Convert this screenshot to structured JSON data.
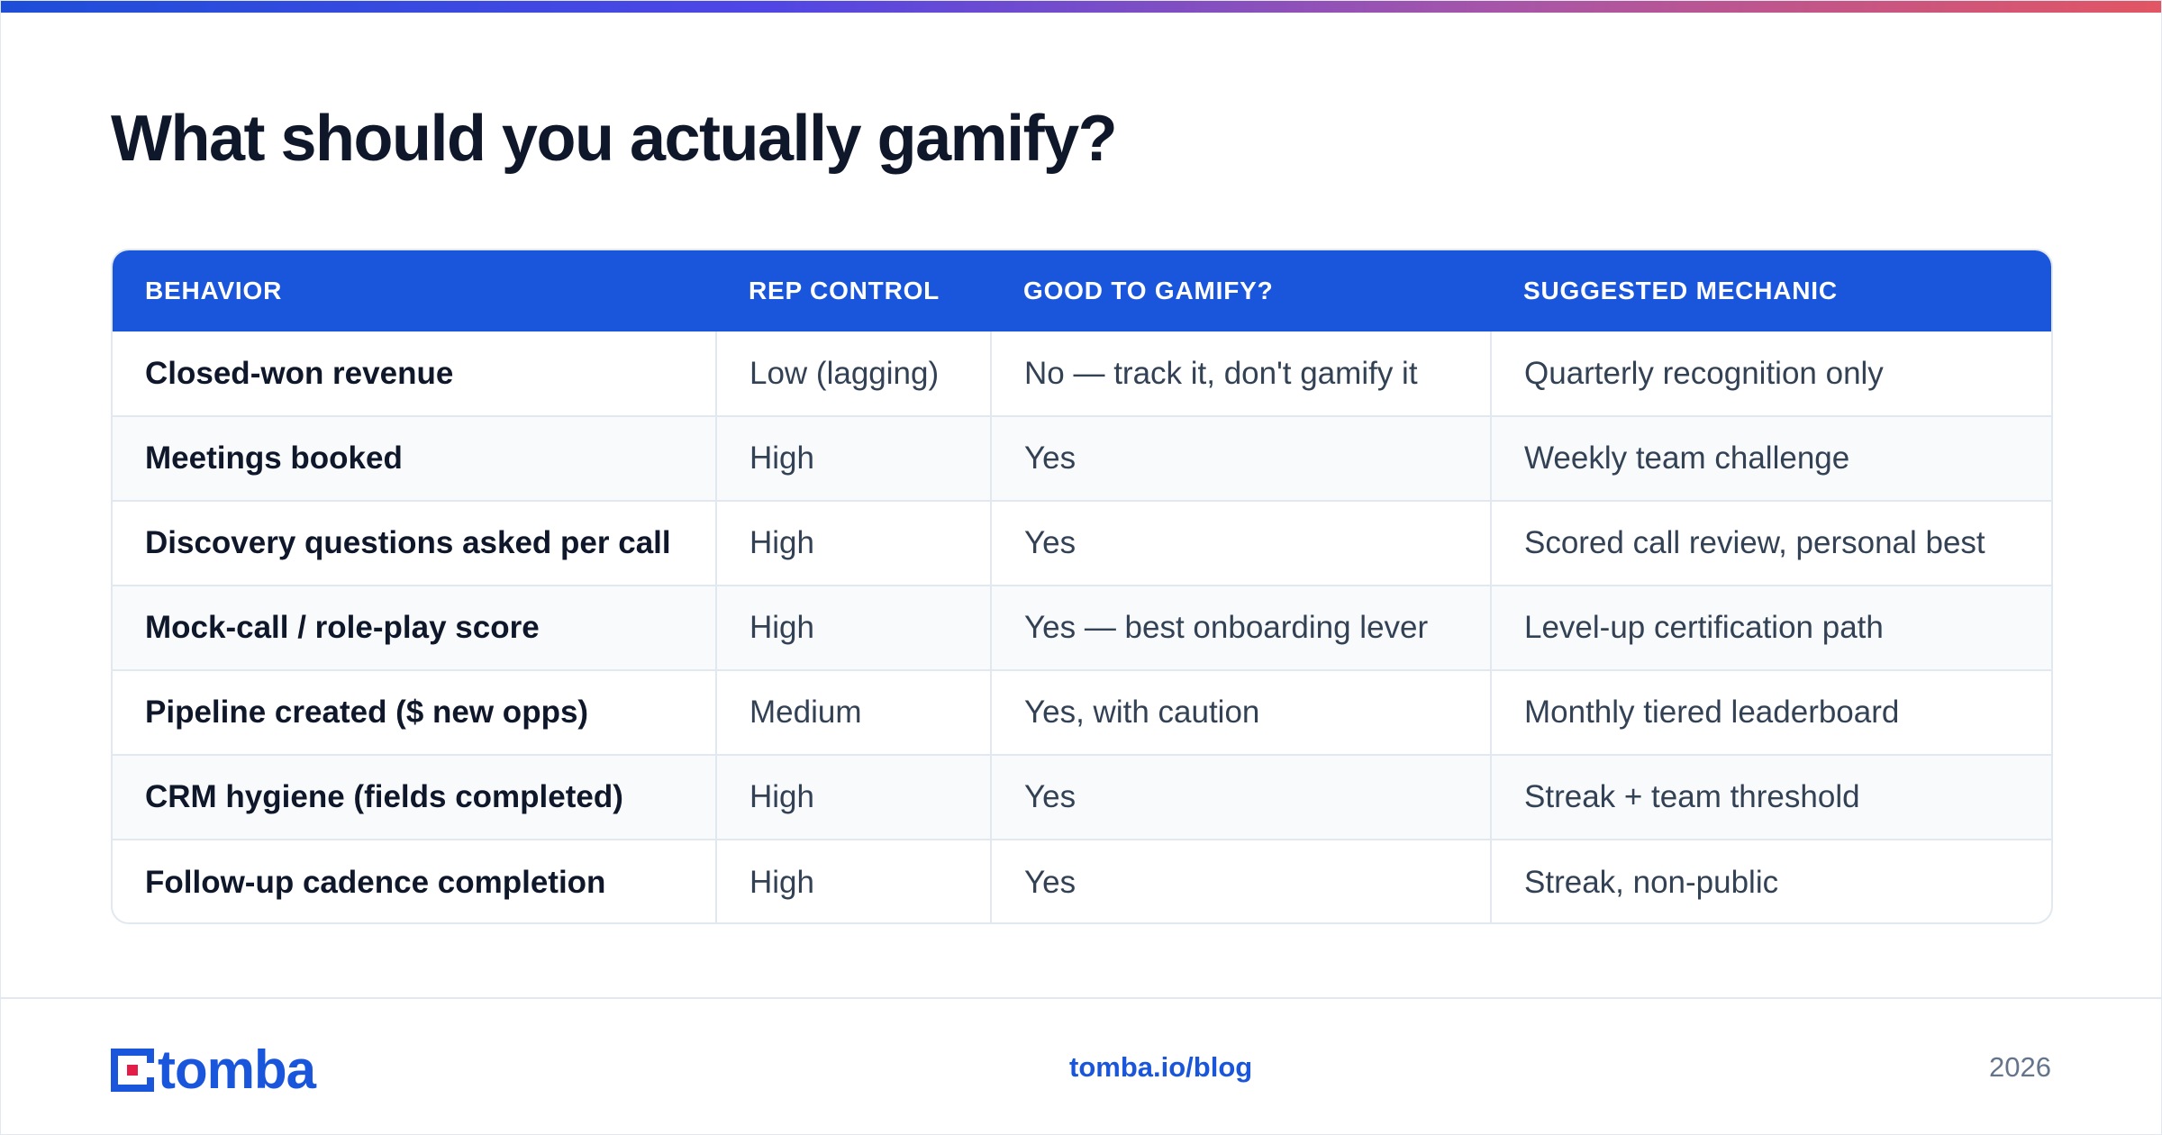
{
  "title": "What should you actually gamify?",
  "table": {
    "headers": [
      "BEHAVIOR",
      "REP CONTROL",
      "GOOD TO GAMIFY?",
      "SUGGESTED MECHANIC"
    ],
    "rows": [
      [
        "Closed-won revenue",
        "Low (lagging)",
        "No — track it, don't gamify it",
        "Quarterly recognition only"
      ],
      [
        "Meetings booked",
        "High",
        "Yes",
        "Weekly team challenge"
      ],
      [
        "Discovery questions asked per call",
        "High",
        "Yes",
        "Scored call review, personal best"
      ],
      [
        "Mock-call / role-play score",
        "High",
        "Yes — best onboarding lever",
        "Level-up certification path"
      ],
      [
        "Pipeline created ($ new opps)",
        "Medium",
        "Yes, with caution",
        "Monthly tiered leaderboard"
      ],
      [
        "CRM hygiene (fields completed)",
        "High",
        "Yes",
        "Streak + team threshold"
      ],
      [
        "Follow-up cadence completion",
        "High",
        "Yes",
        "Streak, non-public"
      ]
    ]
  },
  "footer": {
    "logo_text": "tomba",
    "link": "tomba.io/blog",
    "year": "2026"
  },
  "colors": {
    "accent": "#1a56db",
    "logo_dot": "#e11d48",
    "gradient": [
      "#1d4ed8",
      "#4f46e5",
      "#a855a7",
      "#e25563"
    ]
  },
  "icons": {
    "logo_mark": "tomba-logo-icon"
  }
}
